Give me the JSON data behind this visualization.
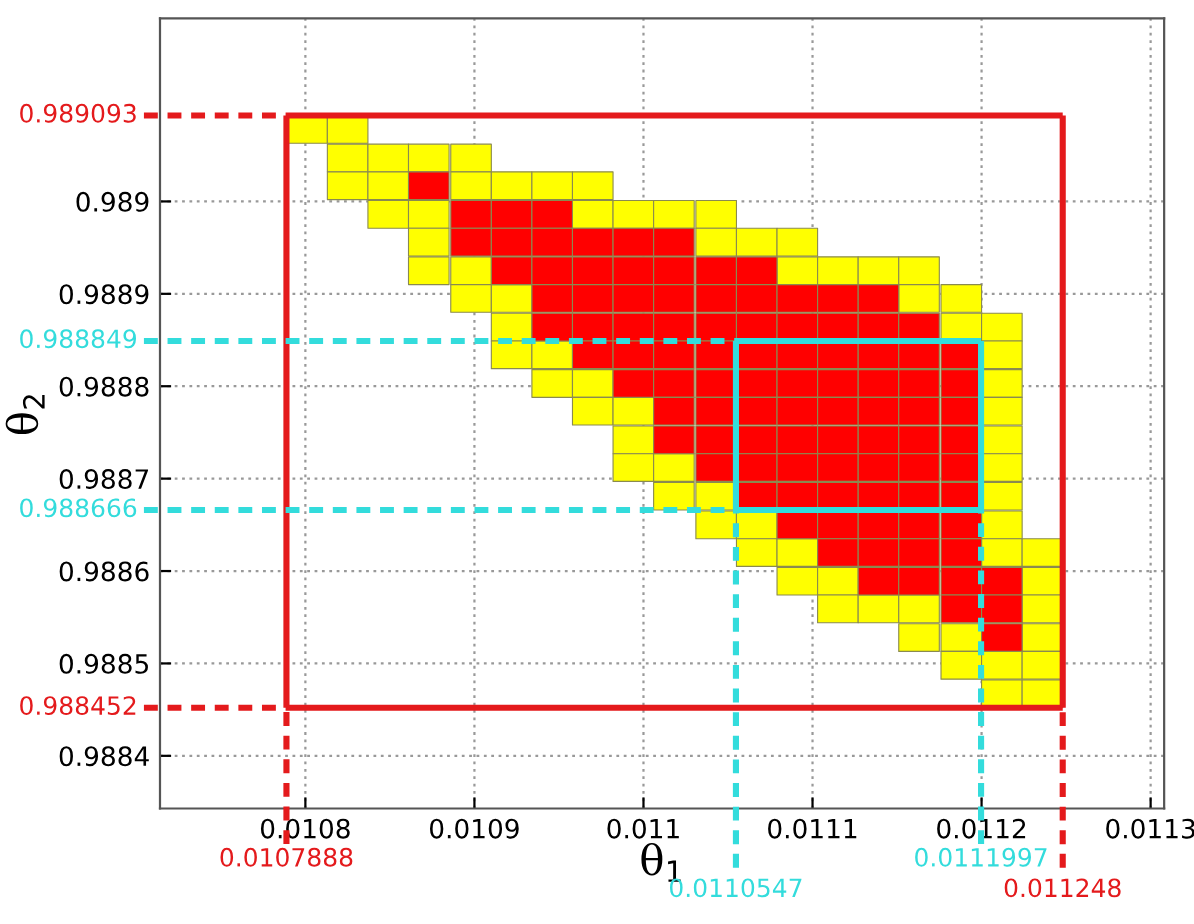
{
  "chart_data": {
    "type": "scatter",
    "xlabel": "θ$_{1}$",
    "ylabel": "θ$_{2}$",
    "xlim": [
      0.010714,
      0.011308
    ],
    "ylim": [
      0.988343,
      0.989198
    ],
    "xticks": [
      0.0108,
      0.0109,
      0.011,
      0.0111,
      0.0112,
      0.0113
    ],
    "yticks": [
      0.9884,
      0.9885,
      0.9886,
      0.9887,
      0.9888,
      0.9889,
      0.989
    ],
    "grid": true,
    "marker": "square",
    "series": [
      {
        "color": "#ffff00",
        "x": [
          0.010801,
          0.010825,
          0.010825,
          0.010849,
          0.010873,
          0.010898,
          0.010825,
          0.010849,
          0.010898,
          0.010922,
          0.010946,
          0.01097,
          0.010849,
          0.010873,
          0.01097,
          0.010994,
          0.011018,
          0.011043,
          0.010873,
          0.011043,
          0.011067,
          0.011091,
          0.010873,
          0.010898,
          0.011091,
          0.011115,
          0.011139,
          0.011163,
          0.010898,
          0.010922,
          0.011163,
          0.011188,
          0.010922,
          0.011188,
          0.011212,
          0.010922,
          0.010946,
          0.011212,
          0.010946,
          0.01097,
          0.011212,
          0.01097,
          0.010994,
          0.011212,
          0.010994,
          0.011212,
          0.010994,
          0.011018,
          0.011212,
          0.011018,
          0.011043,
          0.011212,
          0.011043,
          0.011067,
          0.011212,
          0.011067,
          0.011091,
          0.011212,
          0.011236,
          0.011091,
          0.011115,
          0.011236,
          0.011115,
          0.011139,
          0.011163,
          0.011236,
          0.011163,
          0.011188,
          0.011236,
          0.011188,
          0.011212,
          0.011236,
          0.011212,
          0.011236
        ],
        "values": [
          0.989078,
          0.989078,
          0.989047,
          0.989047,
          0.989047,
          0.989047,
          0.989017,
          0.989017,
          0.989017,
          0.989017,
          0.989017,
          0.989017,
          0.988986,
          0.988986,
          0.988986,
          0.988986,
          0.988986,
          0.988986,
          0.988956,
          0.988956,
          0.988956,
          0.988956,
          0.988925,
          0.988925,
          0.988925,
          0.988925,
          0.988925,
          0.988925,
          0.988895,
          0.988895,
          0.988895,
          0.988895,
          0.988864,
          0.988864,
          0.988864,
          0.988834,
          0.988834,
          0.988834,
          0.988803,
          0.988803,
          0.988803,
          0.988773,
          0.988773,
          0.988773,
          0.988742,
          0.988742,
          0.988712,
          0.988712,
          0.988712,
          0.988681,
          0.988681,
          0.988681,
          0.98865,
          0.98865,
          0.98865,
          0.98862,
          0.98862,
          0.98862,
          0.98862,
          0.988589,
          0.988589,
          0.988589,
          0.988559,
          0.988559,
          0.988559,
          0.988559,
          0.988528,
          0.988528,
          0.988528,
          0.988498,
          0.988498,
          0.988498,
          0.988467,
          0.988467
        ]
      },
      {
        "color": "#ff0000",
        "x": [
          0.010873,
          0.010898,
          0.010922,
          0.010946,
          0.010898,
          0.010922,
          0.010946,
          0.01097,
          0.010994,
          0.011018,
          0.010922,
          0.010946,
          0.01097,
          0.010994,
          0.011018,
          0.011043,
          0.011067,
          0.010946,
          0.01097,
          0.010994,
          0.011018,
          0.011043,
          0.011067,
          0.011091,
          0.011115,
          0.011139,
          0.010946,
          0.01097,
          0.010994,
          0.011018,
          0.011043,
          0.011067,
          0.011091,
          0.011115,
          0.011139,
          0.011163,
          0.01097,
          0.010994,
          0.011018,
          0.011043,
          0.011067,
          0.011091,
          0.011115,
          0.011139,
          0.011163,
          0.011188,
          0.010994,
          0.011018,
          0.011043,
          0.011067,
          0.011091,
          0.011115,
          0.011139,
          0.011163,
          0.011188,
          0.011018,
          0.011043,
          0.011067,
          0.011091,
          0.011115,
          0.011139,
          0.011163,
          0.011188,
          0.011018,
          0.011043,
          0.011067,
          0.011091,
          0.011115,
          0.011139,
          0.011163,
          0.011188,
          0.011043,
          0.011067,
          0.011091,
          0.011115,
          0.011139,
          0.011163,
          0.011188,
          0.011067,
          0.011091,
          0.011115,
          0.011139,
          0.011163,
          0.011188,
          0.011091,
          0.011115,
          0.011139,
          0.011163,
          0.011188,
          0.011115,
          0.011139,
          0.011163,
          0.011188,
          0.011139,
          0.011163,
          0.011188,
          0.011212,
          0.011188,
          0.011212,
          0.011212
        ],
        "values": [
          0.989017,
          0.988986,
          0.988986,
          0.988986,
          0.988956,
          0.988956,
          0.988956,
          0.988956,
          0.988956,
          0.988956,
          0.988925,
          0.988925,
          0.988925,
          0.988925,
          0.988925,
          0.988925,
          0.988925,
          0.988895,
          0.988895,
          0.988895,
          0.988895,
          0.988895,
          0.988895,
          0.988895,
          0.988895,
          0.988895,
          0.988864,
          0.988864,
          0.988864,
          0.988864,
          0.988864,
          0.988864,
          0.988864,
          0.988864,
          0.988864,
          0.988864,
          0.988834,
          0.988834,
          0.988834,
          0.988834,
          0.988834,
          0.988834,
          0.988834,
          0.988834,
          0.988834,
          0.988834,
          0.988803,
          0.988803,
          0.988803,
          0.988803,
          0.988803,
          0.988803,
          0.988803,
          0.988803,
          0.988803,
          0.988773,
          0.988773,
          0.988773,
          0.988773,
          0.988773,
          0.988773,
          0.988773,
          0.988773,
          0.988742,
          0.988742,
          0.988742,
          0.988742,
          0.988742,
          0.988742,
          0.988742,
          0.988742,
          0.988712,
          0.988712,
          0.988712,
          0.988712,
          0.988712,
          0.988712,
          0.988712,
          0.988681,
          0.988681,
          0.988681,
          0.988681,
          0.988681,
          0.988681,
          0.98865,
          0.98865,
          0.98865,
          0.98865,
          0.98865,
          0.98862,
          0.98862,
          0.98862,
          0.98862,
          0.988589,
          0.988589,
          0.988589,
          0.988589,
          0.988559,
          0.988559,
          0.988528
        ]
      }
    ],
    "ref_lines": [
      {
        "axis": "y",
        "value": 0.989093,
        "label": "0.989093",
        "color": "#e41a1c",
        "line_style": "dashed"
      },
      {
        "axis": "y",
        "value": 0.988452,
        "label": "0.988452",
        "color": "#e41a1c",
        "line_style": "dashed"
      },
      {
        "axis": "x",
        "value": 0.0107888,
        "label": "0.0107888",
        "color": "#e41a1c",
        "line_style": "dashed"
      },
      {
        "axis": "x",
        "value": 0.011248,
        "label": "0.011248",
        "color": "#e41a1c",
        "line_style": "dashed"
      },
      {
        "axis": "y",
        "value": 0.988849,
        "label": "0.988849",
        "color": "#33dcdc",
        "line_style": "dashed"
      },
      {
        "axis": "y",
        "value": 0.988666,
        "label": "0.988666",
        "color": "#33dcdc",
        "line_style": "dashed"
      },
      {
        "axis": "x",
        "value": 0.0110547,
        "label": "0.0110547",
        "color": "#33dcdc",
        "line_style": "dashed"
      },
      {
        "axis": "x",
        "value": 0.0111997,
        "label": "0.0111997",
        "color": "#33dcdc",
        "line_style": "dashed"
      }
    ]
  }
}
